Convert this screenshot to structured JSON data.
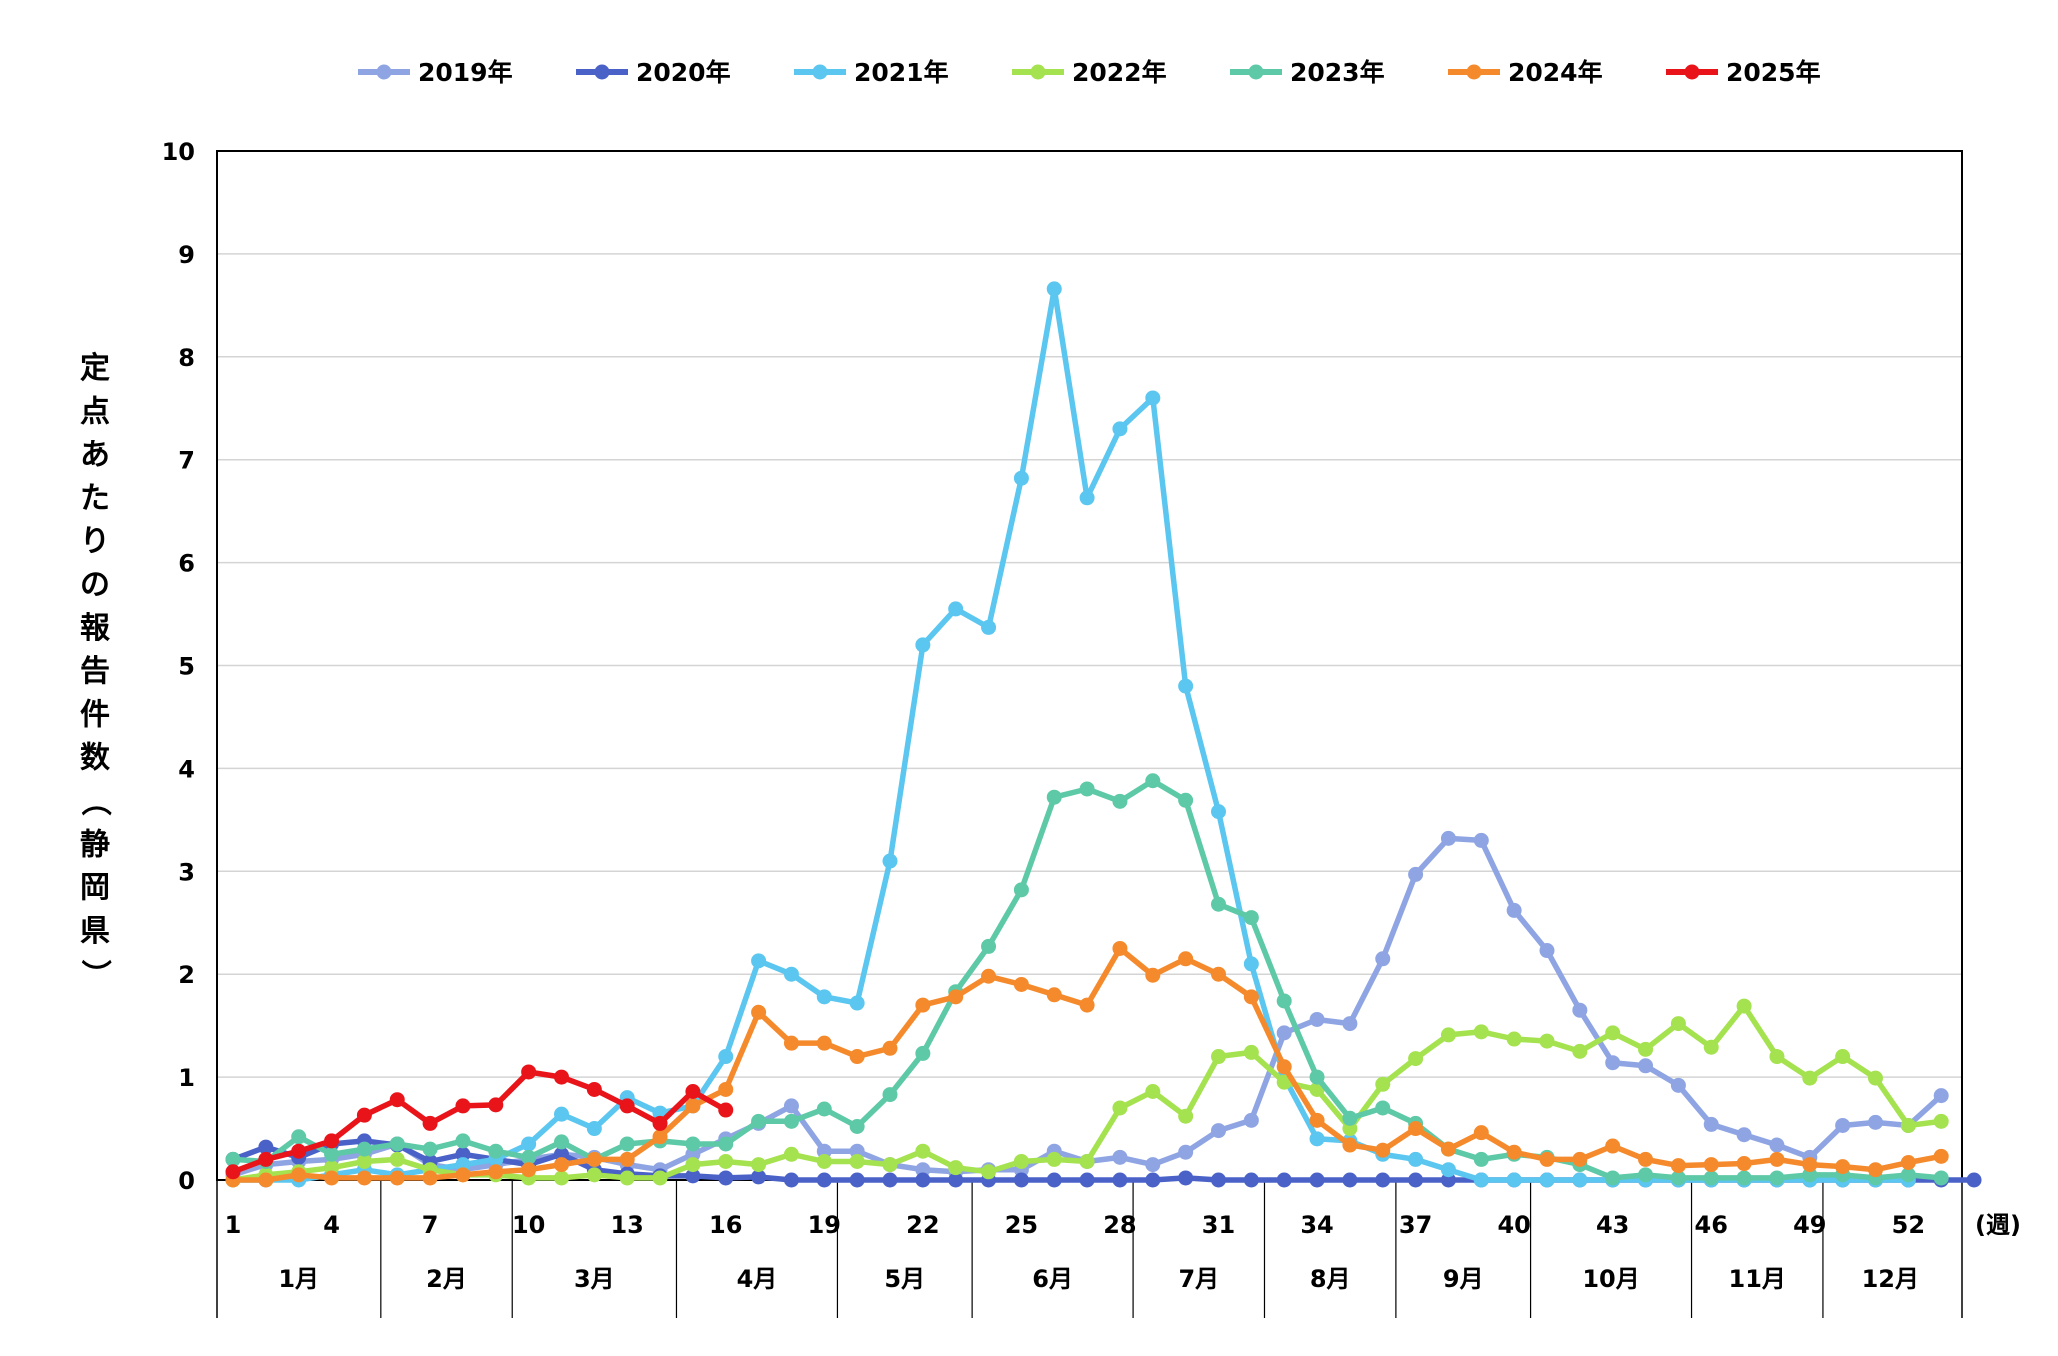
{
  "chart_data": {
    "type": "line",
    "ylabel": "定点あたりの報告件数（静岡県）",
    "xunit_label": "(週)",
    "ylim": [
      0,
      10
    ],
    "yticks": [
      "0",
      "1",
      "2",
      "3",
      "4",
      "5",
      "6",
      "7",
      "8",
      "9",
      "10"
    ],
    "xtick_weeks": [
      1,
      4,
      7,
      10,
      13,
      16,
      19,
      22,
      25,
      28,
      31,
      34,
      37,
      40,
      43,
      46,
      49,
      52
    ],
    "month_labels": [
      "1月",
      "2月",
      "3月",
      "4月",
      "5月",
      "6月",
      "7月",
      "8月",
      "9月",
      "10月",
      "11月",
      "12月"
    ],
    "month_boundaries": [
      0.5,
      5.5,
      9.5,
      14.5,
      19.4,
      23.5,
      28.4,
      32.4,
      36.4,
      40.5,
      45.4,
      49.4,
      53.5
    ],
    "grid": true,
    "legend_position": "top",
    "series": [
      {
        "name": "2019年",
        "color": "#8fa5e3",
        "values": [
          0.05,
          0.15,
          0.18,
          0.2,
          0.25,
          0.35,
          0.15,
          0.1,
          0.15,
          0.2,
          0.25,
          0.22,
          0.15,
          0.1,
          0.25,
          0.4,
          0.55,
          0.72,
          0.28,
          0.28,
          0.15,
          0.1,
          0.08,
          0.1,
          0.1,
          0.28,
          0.18,
          0.22,
          0.15,
          0.27,
          0.48,
          0.58,
          1.43,
          1.56,
          1.52,
          2.15,
          2.97,
          3.32,
          3.3,
          2.62,
          2.23,
          1.65,
          1.14,
          1.11,
          0.92,
          0.54,
          0.44,
          0.34,
          0.22,
          0.53,
          0.56,
          0.53,
          0.82
        ]
      },
      {
        "name": "2020年",
        "color": "#4a62c8",
        "values": [
          0.2,
          0.32,
          0.22,
          0.35,
          0.38,
          0.34,
          0.18,
          0.25,
          0.2,
          0.15,
          0.25,
          0.1,
          0.06,
          0.04,
          0.04,
          0.02,
          0.03,
          0.0,
          0.0,
          0.0,
          0.0,
          0.0,
          0.0,
          0.0,
          0.0,
          0.0,
          0.0,
          0.0,
          0.0,
          0.02,
          0.0,
          0.0,
          0.0,
          0.0,
          0.0,
          0.0,
          0.0,
          0.0,
          0.0,
          0.0,
          0.0,
          0.0,
          0.0,
          0.0,
          0.0,
          0.0,
          0.0,
          0.0,
          0.0,
          0.0,
          0.0,
          0.0,
          0.0,
          0.0
        ]
      },
      {
        "name": "2021年",
        "color": "#5bc6ef",
        "values": [
          0.0,
          0.0,
          0.0,
          0.05,
          0.1,
          0.05,
          0.1,
          0.15,
          0.2,
          0.35,
          0.64,
          0.5,
          0.8,
          0.65,
          0.72,
          1.2,
          2.13,
          2.0,
          1.78,
          1.72,
          3.1,
          5.2,
          5.55,
          5.37,
          6.82,
          8.66,
          6.63,
          7.3,
          7.6,
          4.8,
          3.58,
          2.1,
          1.0,
          0.4,
          0.38,
          0.25,
          0.2,
          0.1,
          0.0,
          0.0,
          0.0,
          0.0,
          0.0,
          0.0,
          0.0,
          0.0,
          0.0,
          0.0,
          0.0,
          0.0,
          0.0,
          0.0
        ]
      },
      {
        "name": "2022年",
        "color": "#a5e24f",
        "values": [
          0.0,
          0.05,
          0.08,
          0.12,
          0.18,
          0.2,
          0.1,
          0.05,
          0.05,
          0.02,
          0.02,
          0.05,
          0.02,
          0.02,
          0.15,
          0.18,
          0.15,
          0.25,
          0.18,
          0.18,
          0.15,
          0.28,
          0.12,
          0.08,
          0.18,
          0.2,
          0.18,
          0.7,
          0.86,
          0.62,
          1.2,
          1.24,
          0.95,
          0.88,
          0.5,
          0.93,
          1.18,
          1.41,
          1.44,
          1.37,
          1.35,
          1.25,
          1.43,
          1.27,
          1.52,
          1.29,
          1.69,
          1.2,
          0.99,
          1.2,
          0.99,
          0.53,
          0.57
        ]
      },
      {
        "name": "2023年",
        "color": "#5ec9a6",
        "values": [
          0.2,
          0.18,
          0.42,
          0.25,
          0.3,
          0.35,
          0.3,
          0.38,
          0.28,
          0.22,
          0.37,
          0.2,
          0.35,
          0.38,
          0.35,
          0.35,
          0.57,
          0.57,
          0.69,
          0.52,
          0.83,
          1.23,
          1.83,
          2.27,
          2.82,
          3.72,
          3.8,
          3.68,
          3.88,
          3.69,
          2.68,
          2.55,
          1.74,
          1.0,
          0.6,
          0.7,
          0.55,
          0.3,
          0.2,
          0.25,
          0.22,
          0.15,
          0.02,
          0.05,
          0.02,
          0.02,
          0.02,
          0.02,
          0.05,
          0.05,
          0.02,
          0.05,
          0.02
        ]
      },
      {
        "name": "2024年",
        "color": "#f58a2c",
        "values": [
          0.0,
          0.0,
          0.05,
          0.02,
          0.02,
          0.02,
          0.02,
          0.05,
          0.08,
          0.1,
          0.15,
          0.2,
          0.2,
          0.42,
          0.72,
          0.88,
          1.63,
          1.33,
          1.33,
          1.2,
          1.28,
          1.7,
          1.78,
          1.98,
          1.9,
          1.8,
          1.7,
          2.25,
          1.99,
          2.15,
          2.0,
          1.78,
          1.1,
          0.58,
          0.34,
          0.29,
          0.5,
          0.3,
          0.46,
          0.27,
          0.2,
          0.2,
          0.33,
          0.2,
          0.14,
          0.15,
          0.16,
          0.2,
          0.15,
          0.13,
          0.1,
          0.17,
          0.23
        ]
      },
      {
        "name": "2025年",
        "color": "#e8141a",
        "values": [
          0.08,
          0.2,
          0.28,
          0.38,
          0.63,
          0.78,
          0.55,
          0.72,
          0.73,
          1.05,
          1.0,
          0.88,
          0.72,
          0.55,
          0.86,
          0.68
        ]
      }
    ]
  }
}
